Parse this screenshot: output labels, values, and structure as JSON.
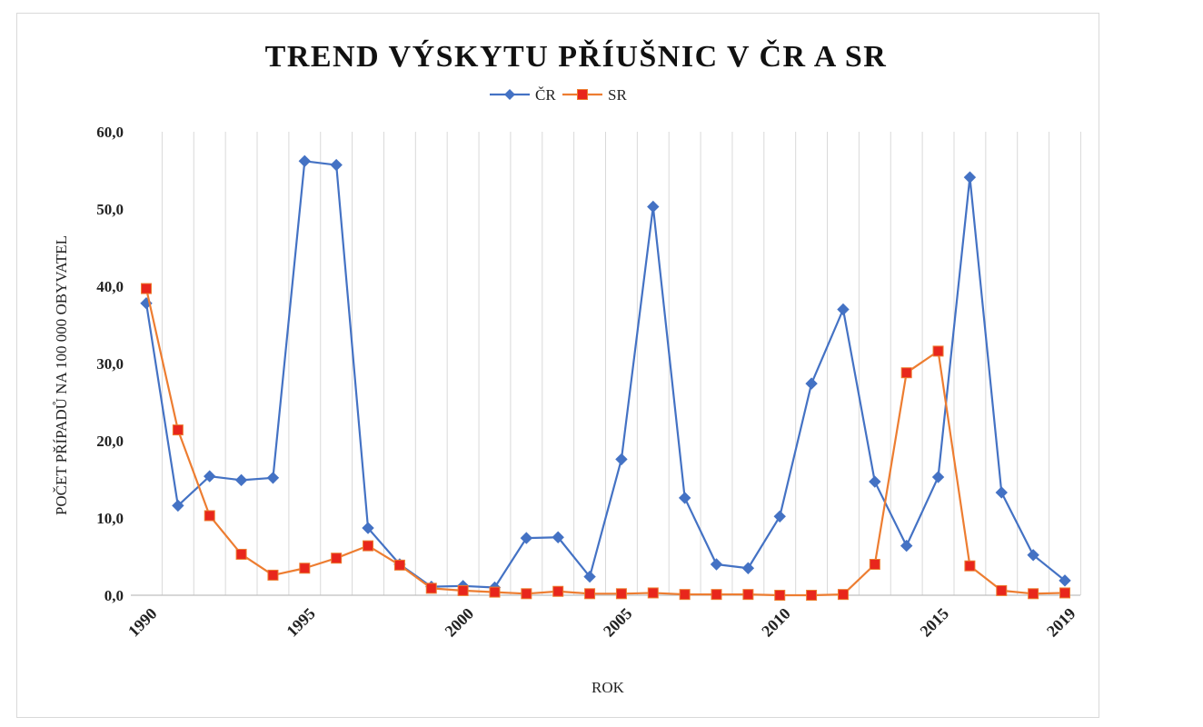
{
  "chart_data": {
    "type": "line",
    "title": "TREND VÝSKYTU PŘÍUŠNIC V ČR A SR",
    "xlabel": "ROK",
    "ylabel": "POČET PŘÍPADŮ NA 100 000 OBYVATEL",
    "x": [
      1990,
      1991,
      1992,
      1993,
      1994,
      1995,
      1996,
      1997,
      1998,
      1999,
      2000,
      2001,
      2002,
      2003,
      2004,
      2005,
      2006,
      2007,
      2008,
      2009,
      2010,
      2011,
      2012,
      2013,
      2014,
      2015,
      2016,
      2017,
      2018,
      2019
    ],
    "x_tick_labels": [
      "1990",
      "1995",
      "2000",
      "2005",
      "2010",
      "2015",
      "2019"
    ],
    "y_tick_labels": [
      "0,0",
      "10,0",
      "20,0",
      "30,0",
      "40,0",
      "50,0",
      "60,0"
    ],
    "ylim": [
      0,
      60
    ],
    "grid": "vertical",
    "legend_position": "top",
    "series": [
      {
        "name": "ČR",
        "color": "#4472C4",
        "marker": "diamond",
        "values": [
          37.8,
          11.6,
          15.4,
          14.9,
          15.2,
          56.2,
          55.7,
          8.7,
          4.0,
          1.1,
          1.2,
          1.0,
          7.4,
          7.5,
          2.4,
          17.6,
          50.3,
          12.6,
          4.0,
          3.5,
          10.2,
          27.4,
          37.0,
          14.7,
          6.4,
          15.3,
          54.1,
          13.3,
          5.2,
          1.9
        ]
      },
      {
        "name": "SR",
        "color": "#ED7D31",
        "marker": "square",
        "values": [
          39.7,
          21.4,
          10.3,
          5.3,
          2.6,
          3.5,
          4.8,
          6.4,
          3.9,
          0.9,
          0.6,
          0.4,
          0.2,
          0.5,
          0.2,
          0.2,
          0.3,
          0.1,
          0.1,
          0.1,
          0.0,
          0.0,
          0.1,
          4.0,
          28.8,
          31.6,
          3.8,
          0.6,
          0.2,
          0.3
        ]
      }
    ]
  }
}
